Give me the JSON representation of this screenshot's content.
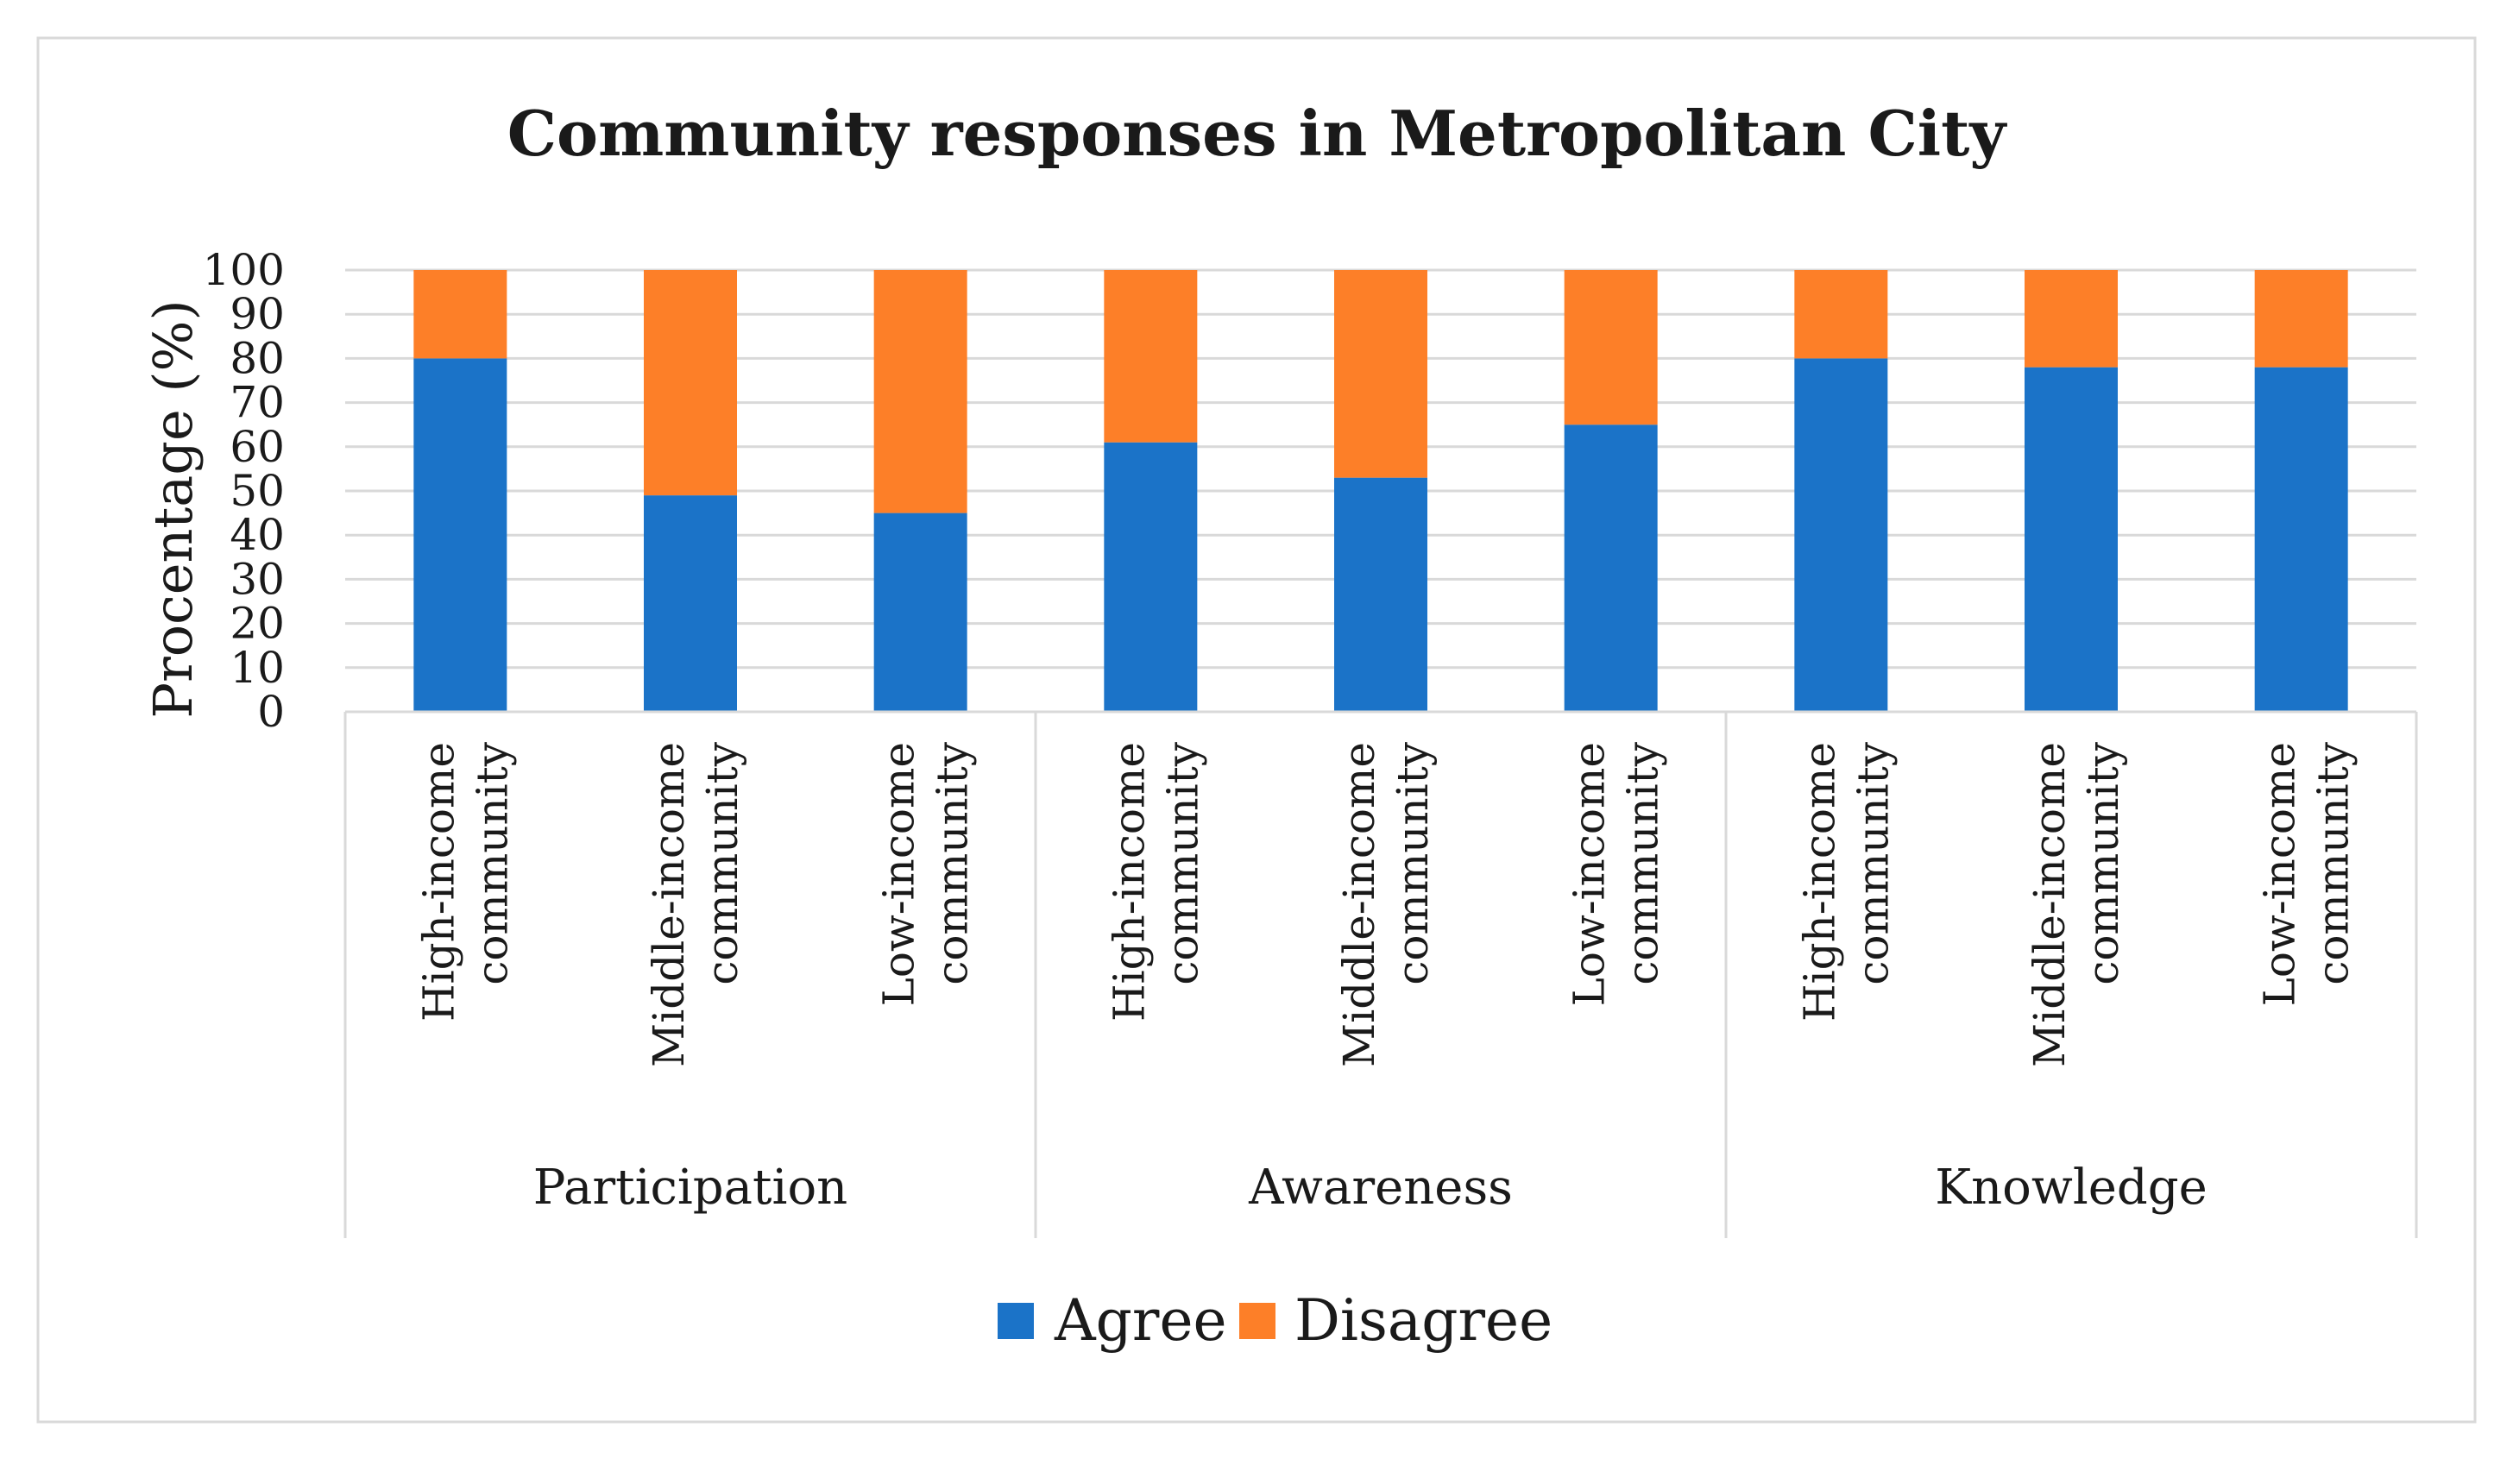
{
  "chart_data": {
    "type": "bar",
    "stacked": true,
    "title": "Community responses in Metropolitan City",
    "xlabel": "",
    "ylabel": "Procentage (%)",
    "ylim": [
      0,
      100
    ],
    "yticks": [
      0,
      10,
      20,
      30,
      40,
      50,
      60,
      70,
      80,
      90,
      100
    ],
    "grid": true,
    "legend_position": "bottom",
    "groups": [
      {
        "name": "Participation",
        "categories": [
          [
            "High-income",
            "community"
          ],
          [
            "Middle-income",
            "community"
          ],
          [
            "Low-income",
            "community"
          ]
        ]
      },
      {
        "name": "Awareness",
        "categories": [
          [
            "High-income",
            "community"
          ],
          [
            "Middle-income",
            "community"
          ],
          [
            "Low-income",
            "community"
          ]
        ]
      },
      {
        "name": "Knowledge",
        "categories": [
          [
            "High-income",
            "community"
          ],
          [
            "Middle-income",
            "community"
          ],
          [
            "Low-income",
            "community"
          ]
        ]
      }
    ],
    "series": [
      {
        "name": "Agree",
        "color": "#1b73c8",
        "values": [
          80,
          49,
          45,
          61,
          53,
          65,
          80,
          78,
          78
        ]
      },
      {
        "name": "Disagree",
        "color": "#fd7f28",
        "values": [
          20,
          51,
          55,
          39,
          47,
          35,
          20,
          22,
          22
        ]
      }
    ]
  }
}
